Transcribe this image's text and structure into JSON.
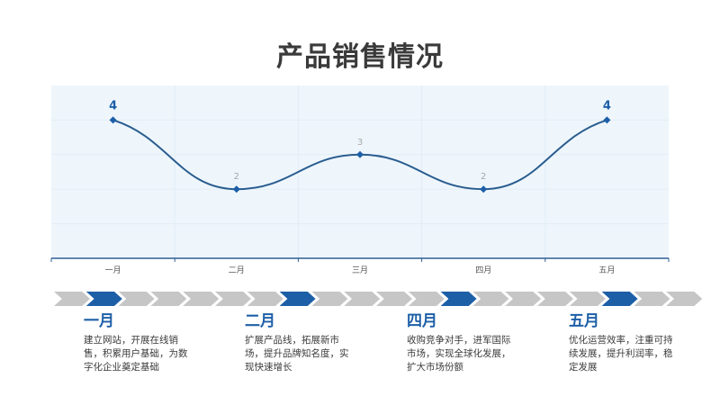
{
  "title": "产品销售情况",
  "colors": {
    "accent": "#1d5fa7",
    "line": "#2a5d8f",
    "muted_label": "#a9a9a9",
    "chevron_grey": "#c6c6c6",
    "plot_bg": "#eef6fc"
  },
  "chart_data": {
    "type": "line",
    "categories": [
      "一月",
      "二月",
      "三月",
      "四月",
      "五月"
    ],
    "values": [
      4,
      2,
      3,
      2,
      4
    ],
    "data_labels": [
      "4",
      "2",
      "3",
      "2",
      "4"
    ],
    "highlight_points": [
      0,
      4
    ],
    "ylim": [
      0,
      5
    ],
    "grid": true,
    "smooth": true,
    "title": "",
    "xlabel": "",
    "ylabel": ""
  },
  "timeline": {
    "chevrons": [
      "grey",
      "blue",
      "grey",
      "grey",
      "grey",
      "grey",
      "grey",
      "blue",
      "grey",
      "grey",
      "grey",
      "grey",
      "blue",
      "grey",
      "grey",
      "grey",
      "grey",
      "blue",
      "grey",
      "grey"
    ]
  },
  "milestones": [
    {
      "label": "一月",
      "text": "建立网站，开展在线销售，积累用户基础，为数字化企业奠定基础"
    },
    {
      "label": "二月",
      "text": "扩展产品线，拓展新市场，提升品牌知名度，实现快速增长"
    },
    {
      "label": "四月",
      "text": "收购竞争对手，进军国际市场，实现全球化发展，扩大市场份额"
    },
    {
      "label": "五月",
      "text": "优化运营效率，注重可持续发展，提升利润率，稳定发展"
    }
  ]
}
